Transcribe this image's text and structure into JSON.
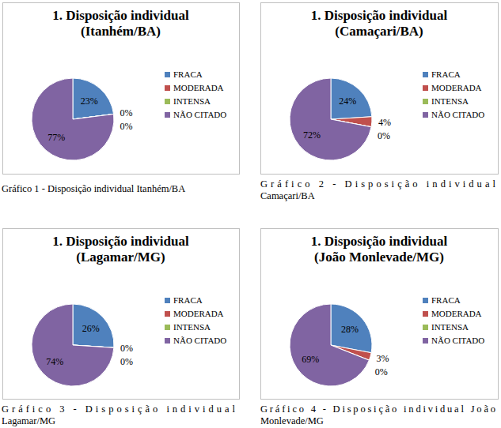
{
  "chart_data": [
    {
      "type": "pie",
      "title": "1. Disposição individual\n(Itanhém/BA)",
      "categories": [
        "FRACA",
        "MODERADA",
        "INTENSA",
        "NÃO CITADO"
      ],
      "values": [
        23,
        0,
        0,
        77
      ],
      "value_labels": [
        "23%",
        "0%",
        "0%",
        "77%"
      ],
      "colors": [
        "#4f81bd",
        "#c0504d",
        "#9bbb59",
        "#8064a2"
      ],
      "data_labels": true,
      "legend": "right"
    },
    {
      "type": "pie",
      "title": "1. Disposição individual\n(Camaçari/BA)",
      "categories": [
        "FRACA",
        "MODERADA",
        "INTENSA",
        "NÃO CITADO"
      ],
      "values": [
        24,
        4,
        0,
        72
      ],
      "value_labels": [
        "24%",
        "4%",
        "0%",
        "72%"
      ],
      "colors": [
        "#4f81bd",
        "#c0504d",
        "#9bbb59",
        "#8064a2"
      ],
      "data_labels": true,
      "legend": "right"
    },
    {
      "type": "pie",
      "title": "1. Disposição individual\n(Lagamar/MG)",
      "categories": [
        "FRACA",
        "MODERADA",
        "INTENSA",
        "NÃO CITADO"
      ],
      "values": [
        26,
        0,
        0,
        74
      ],
      "value_labels": [
        "26%",
        "0%",
        "0%",
        "74%"
      ],
      "colors": [
        "#4f81bd",
        "#c0504d",
        "#9bbb59",
        "#8064a2"
      ],
      "data_labels": true,
      "legend": "right"
    },
    {
      "type": "pie",
      "title": "1. Disposição individual\n(João Monlevade/MG)",
      "categories": [
        "FRACA",
        "MODERADA",
        "INTENSA",
        "NÃO CITADO"
      ],
      "values": [
        28,
        3,
        0,
        69
      ],
      "value_labels": [
        "28%",
        "3%",
        "0%",
        "69%"
      ],
      "colors": [
        "#4f81bd",
        "#c0504d",
        "#9bbb59",
        "#8064a2"
      ],
      "data_labels": true,
      "legend": "right"
    }
  ],
  "captions": [
    "Gráfico 1 - Disposição individual Itanhém/BA",
    "Gráfico 2 - Disposição individual\nCamaçari/BA",
    "Gráfico 3 - Disposição individual\nLagamar/MG",
    "Gráfico 4 - Disposição individual João\nMonlevade/MG"
  ]
}
